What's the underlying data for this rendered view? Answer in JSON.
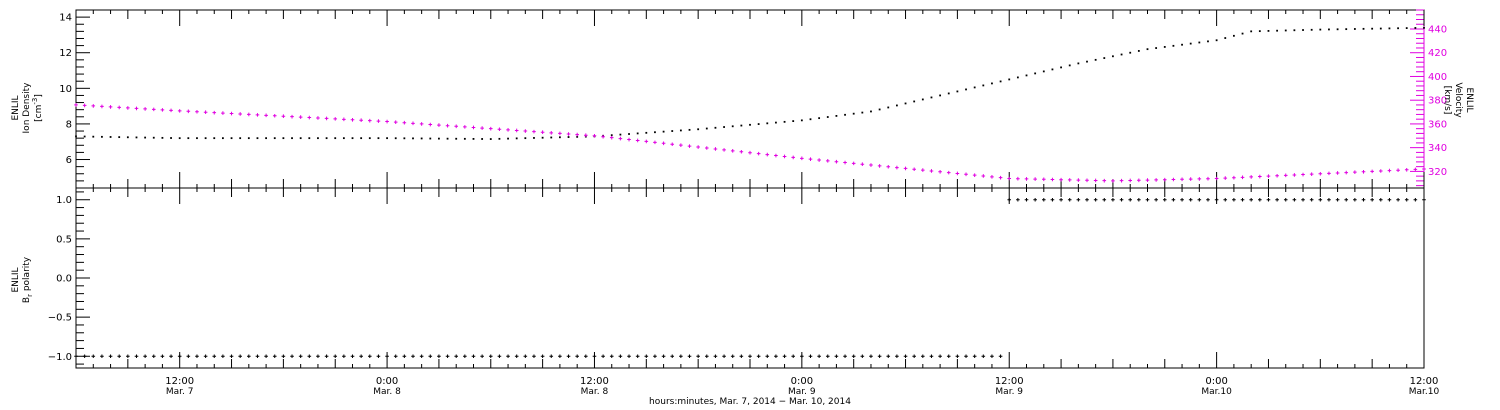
{
  "chart_data": [
    {
      "type": "line",
      "panel": "top",
      "time_start": "2014-03-07T06:00",
      "time_end": "2014-03-10T12:00",
      "left_axis": {
        "label_line1": "ENLIL",
        "label_line2": "Ion Density",
        "unit": "[cm",
        "unit_exp": "-3",
        "unit_close": "]",
        "ylim": [
          4.4,
          14.4
        ],
        "ticks": [
          6,
          8,
          10,
          12,
          14
        ],
        "tick_labels": [
          "6",
          "8",
          "10",
          "12",
          "14"
        ]
      },
      "right_axis": {
        "label_line1": "ENLIL",
        "label_line2": "Velocity",
        "unit": "[km/s]",
        "color": "#e000e0",
        "ylim": [
          306,
          456
        ],
        "ticks": [
          320,
          340,
          360,
          380,
          400,
          420,
          440
        ],
        "tick_labels": [
          "320",
          "340",
          "360",
          "380",
          "400",
          "420",
          "440"
        ]
      },
      "series": [
        {
          "axis": "left",
          "color": "#000000",
          "x": [
            "2014-03-07T06:00",
            "2014-03-07T12:00",
            "2014-03-08T00:00",
            "2014-03-08T06:00",
            "2014-03-08T12:00",
            "2014-03-08T18:00",
            "2014-03-09T00:00",
            "2014-03-09T04:00",
            "2014-03-09T12:00",
            "2014-03-09T16:00",
            "2014-03-09T20:00",
            "2014-03-10T00:00",
            "2014-03-10T02:00",
            "2014-03-10T06:00",
            "2014-03-10T12:00"
          ],
          "values": [
            7.3,
            7.2,
            7.2,
            7.15,
            7.3,
            7.7,
            8.2,
            8.7,
            10.5,
            11.4,
            12.2,
            12.7,
            13.2,
            13.3,
            13.4
          ]
        },
        {
          "axis": "right",
          "color": "#e000e0",
          "x": [
            "2014-03-07T06:00",
            "2014-03-07T12:00",
            "2014-03-08T00:00",
            "2014-03-08T12:00",
            "2014-03-09T00:00",
            "2014-03-09T12:00",
            "2014-03-09T18:00",
            "2014-03-10T00:00",
            "2014-03-10T06:00",
            "2014-03-10T12:00"
          ],
          "values": [
            376,
            371,
            362,
            350,
            331,
            314,
            312,
            314,
            318,
            322
          ]
        }
      ]
    },
    {
      "type": "line",
      "panel": "bottom",
      "time_start": "2014-03-07T06:00",
      "time_end": "2014-03-10T12:00",
      "left_axis": {
        "label_line1": "ENLIL",
        "label_line2": "B",
        "label_sub": "r",
        "label_rest": " polarity",
        "ylim": [
          -1.15,
          1.15
        ],
        "ticks": [
          -1.0,
          -0.5,
          0.0,
          0.5,
          1.0
        ],
        "tick_labels": [
          "−1.0",
          "−0.5",
          "0.0",
          "0.5",
          "1.0"
        ]
      },
      "series": [
        {
          "color": "#000000",
          "x": [
            "2014-03-07T06:00",
            "2014-03-09T11:30",
            "2014-03-09T12:00",
            "2014-03-10T12:00"
          ],
          "values": [
            -1,
            -1,
            1,
            1
          ],
          "segments": [
            [
              0,
              1
            ],
            [
              2,
              3
            ]
          ]
        }
      ]
    }
  ],
  "x_axis": {
    "title": "hours:minutes, Mar.  7, 2014 − Mar. 10, 2014",
    "major_ticks": [
      {
        "t": "2014-03-07T12:00",
        "time": "12:00",
        "date": "Mar. 7"
      },
      {
        "t": "2014-03-08T00:00",
        "time": "0:00",
        "date": "Mar. 8"
      },
      {
        "t": "2014-03-08T12:00",
        "time": "12:00",
        "date": "Mar. 8"
      },
      {
        "t": "2014-03-09T00:00",
        "time": "0:00",
        "date": "Mar. 9"
      },
      {
        "t": "2014-03-09T12:00",
        "time": "12:00",
        "date": "Mar. 9"
      },
      {
        "t": "2014-03-10T00:00",
        "time": "0:00",
        "date": "Mar.10"
      },
      {
        "t": "2014-03-10T12:00",
        "time": "12:00",
        "date": "Mar.10"
      }
    ]
  }
}
